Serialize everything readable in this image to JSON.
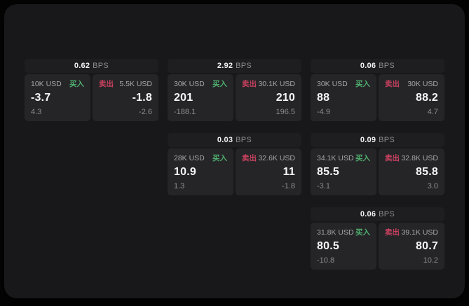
{
  "labels": {
    "buy": "买入",
    "sell": "卖出",
    "bps": "BPS"
  },
  "colors": {
    "buy": "#4fae6d",
    "sell": "#c9415f",
    "surface": "#18181a",
    "header": "#1e1e20",
    "panel": "#252528"
  },
  "cards": [
    {
      "col": 1,
      "row": 1,
      "bps": "0.62",
      "buy": {
        "amount": "10K USD",
        "value": "-3.7",
        "delta": "4.3"
      },
      "sell": {
        "amount": "5.5K USD",
        "value": "-1.8",
        "delta": "-2.6"
      }
    },
    {
      "col": 2,
      "row": 1,
      "bps": "2.92",
      "buy": {
        "amount": "30K USD",
        "value": "201",
        "delta": "-188.1"
      },
      "sell": {
        "amount": "30.1K USD",
        "value": "210",
        "delta": "196.5"
      }
    },
    {
      "col": 3,
      "row": 1,
      "bps": "0.06",
      "buy": {
        "amount": "30K USD",
        "value": "88",
        "delta": "-4.9"
      },
      "sell": {
        "amount": "30K USD",
        "value": "88.2",
        "delta": "4.7"
      }
    },
    {
      "col": 2,
      "row": 2,
      "bps": "0.03",
      "buy": {
        "amount": "28K USD",
        "value": "10.9",
        "delta": "1.3"
      },
      "sell": {
        "amount": "32.6K USD",
        "value": "11",
        "delta": "-1.8"
      }
    },
    {
      "col": 3,
      "row": 2,
      "bps": "0.09",
      "buy": {
        "amount": "34.1K USD",
        "value": "85.5",
        "delta": "-3.1"
      },
      "sell": {
        "amount": "32.8K USD",
        "value": "85.8",
        "delta": "3.0"
      }
    },
    {
      "col": 3,
      "row": 3,
      "bps": "0.06",
      "buy": {
        "amount": "31.8K USD",
        "value": "80.5",
        "delta": "-10.8"
      },
      "sell": {
        "amount": "39.1K USD",
        "value": "80.7",
        "delta": "10.2"
      }
    }
  ]
}
